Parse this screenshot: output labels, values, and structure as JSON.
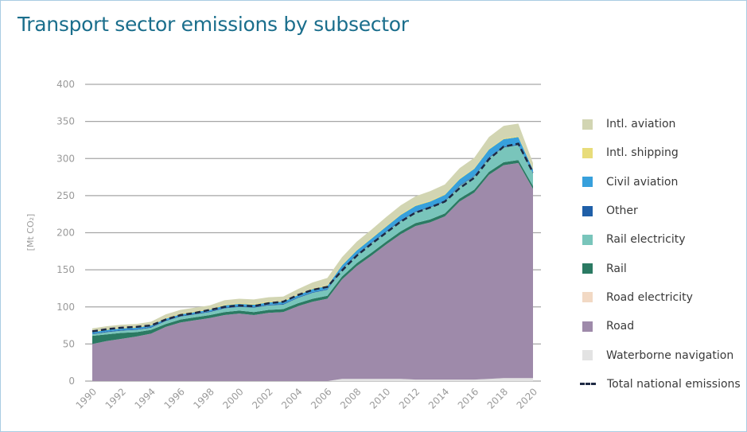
{
  "title": "Transport sector emissions by subsector",
  "chart_data": {
    "type": "area",
    "title": "Transport sector emissions by subsector",
    "xlabel": "",
    "ylabel": "[Mt CO₂]",
    "ylim": [
      0,
      400
    ],
    "yticks": [
      0,
      50,
      100,
      150,
      200,
      250,
      300,
      350,
      400
    ],
    "grid": true,
    "legend_position": "right",
    "x": [
      1990,
      1991,
      1992,
      1993,
      1994,
      1995,
      1996,
      1997,
      1998,
      1999,
      2000,
      2001,
      2002,
      2003,
      2004,
      2005,
      2006,
      2007,
      2008,
      2009,
      2010,
      2011,
      2012,
      2013,
      2014,
      2015,
      2016,
      2017,
      2018,
      2019,
      2020
    ],
    "xticks": [
      "1990",
      "1992",
      "1994",
      "1996",
      "1998",
      "2000",
      "2002",
      "2004",
      "2006",
      "2008",
      "2010",
      "2012",
      "2014",
      "2016",
      "2018",
      "2020"
    ],
    "series": [
      {
        "name": "Waterborne navigation",
        "color": "#e3e3e3",
        "values": [
          0,
          0,
          0,
          0,
          0,
          0,
          0,
          0,
          0,
          0,
          0,
          0,
          0,
          0,
          0,
          0,
          0,
          3,
          3,
          3,
          3,
          3,
          2,
          2,
          2,
          2,
          2,
          3,
          4,
          4,
          4
        ]
      },
      {
        "name": "Road",
        "color": "#9e8aaa",
        "values": [
          50,
          54,
          57,
          60,
          64,
          73,
          79,
          82,
          85,
          89,
          91,
          89,
          92,
          93,
          101,
          107,
          111,
          134,
          152,
          166,
          181,
          195,
          207,
          212,
          220,
          240,
          252,
          275,
          287,
          290,
          255
        ]
      },
      {
        "name": "Road electricity",
        "color": "#f2d9c4",
        "values": [
          0,
          0,
          0,
          0,
          0,
          0,
          0,
          0,
          0,
          0,
          0,
          0,
          0,
          0,
          0,
          0,
          0,
          0,
          0,
          0,
          0,
          0,
          0,
          0,
          0,
          0,
          0,
          0,
          0,
          0,
          0
        ]
      },
      {
        "name": "Rail",
        "color": "#2b7a63",
        "values": [
          11,
          9,
          8,
          6,
          5,
          4,
          4,
          4,
          4,
          4,
          4,
          4,
          4,
          4,
          4,
          4,
          4,
          4,
          4,
          4,
          4,
          4,
          4,
          4,
          4,
          4,
          4,
          4,
          4,
          4,
          4
        ]
      },
      {
        "name": "Rail electricity",
        "color": "#79c5bb",
        "values": [
          2,
          3,
          3,
          3,
          3,
          4,
          4,
          4,
          4,
          5,
          5,
          6,
          6,
          6,
          7,
          8,
          8,
          10,
          11,
          13,
          13,
          14,
          15,
          16,
          16,
          17,
          18,
          19,
          20,
          20,
          17
        ]
      },
      {
        "name": "Other",
        "color": "#1f5fa8",
        "values": [
          1,
          1,
          1,
          1,
          1,
          1,
          1,
          1,
          1,
          1,
          1,
          1,
          1,
          1,
          1,
          1,
          1,
          1,
          1,
          1,
          1,
          1,
          1,
          1,
          1,
          1,
          1,
          1,
          1,
          1,
          1
        ]
      },
      {
        "name": "Civil aviation",
        "color": "#37a0dc",
        "values": [
          2,
          2,
          2,
          2,
          2,
          2,
          2,
          2,
          2,
          3,
          3,
          3,
          3,
          3,
          3,
          4,
          4,
          4,
          5,
          5,
          6,
          7,
          7,
          7,
          8,
          8,
          9,
          10,
          10,
          10,
          4
        ]
      },
      {
        "name": "Intl. shipping",
        "color": "#e8dc7a",
        "values": [
          1,
          1,
          1,
          1,
          1,
          1,
          1,
          1,
          1,
          1,
          1,
          1,
          1,
          1,
          1,
          1,
          1,
          1,
          1,
          1,
          1,
          1,
          1,
          1,
          1,
          1,
          1,
          1,
          1,
          1,
          1
        ]
      },
      {
        "name": "Intl. aviation",
        "color": "#d2d5b2",
        "values": [
          4,
          4,
          4,
          4,
          4,
          5,
          5,
          5,
          5,
          6,
          6,
          6,
          6,
          6,
          7,
          8,
          10,
          10,
          11,
          11,
          12,
          12,
          12,
          13,
          13,
          14,
          14,
          16,
          17,
          17,
          8
        ]
      }
    ],
    "total_national_emissions": {
      "name": "Total national emissions",
      "color": "#1f2a44",
      "values": [
        67,
        70,
        72,
        73,
        75,
        83,
        89,
        92,
        96,
        100,
        102,
        101,
        105,
        107,
        116,
        123,
        127,
        149,
        169,
        185,
        200,
        215,
        227,
        234,
        242,
        260,
        274,
        299,
        316,
        320,
        281
      ]
    }
  },
  "legend": [
    {
      "label": "Intl. aviation",
      "kind": "swatch",
      "color": "#d2d5b2"
    },
    {
      "label": "Intl. shipping",
      "kind": "swatch",
      "color": "#e8dc7a"
    },
    {
      "label": "Civil aviation",
      "kind": "swatch",
      "color": "#37a0dc"
    },
    {
      "label": "Other",
      "kind": "swatch",
      "color": "#1f5fa8"
    },
    {
      "label": "Rail electricity",
      "kind": "swatch",
      "color": "#79c5bb"
    },
    {
      "label": "Rail",
      "kind": "swatch",
      "color": "#2b7a63"
    },
    {
      "label": "Road electricity",
      "kind": "swatch",
      "color": "#f2d9c4"
    },
    {
      "label": "Road",
      "kind": "swatch",
      "color": "#9e8aaa"
    },
    {
      "label": "Waterborne navigation",
      "kind": "swatch",
      "color": "#e3e3e3"
    },
    {
      "label": "Total national emissions",
      "kind": "dash",
      "color": "#1f2a44"
    }
  ]
}
